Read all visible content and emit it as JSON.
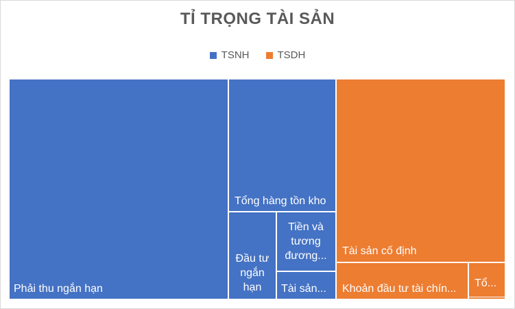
{
  "chart_data": {
    "type": "treemap",
    "title": "TỈ TRỌNG TÀI SẢN",
    "groups": [
      {
        "name": "TSNH",
        "color": "#4472C4"
      },
      {
        "name": "TSDH",
        "color": "#ED7D31"
      }
    ],
    "items": [
      {
        "label": "Phải thu ngắn hạn",
        "group": "TSNH",
        "value": 34.6
      },
      {
        "label": "Tổng hàng tồn kho",
        "group": "TSNH",
        "value": 8.3
      },
      {
        "label": "Đầu tư ngắn hạn",
        "group": "TSNH",
        "value": 4.8
      },
      {
        "label": "Tiền và tương đương...",
        "group": "TSNH",
        "value": 3.4
      },
      {
        "label": "Tài sản...",
        "group": "TSNH",
        "value": 1.3
      },
      {
        "label": "Tài sản cố định",
        "group": "TSDH",
        "value": 13.9
      },
      {
        "label": "Khoản đầu tư tài chín...",
        "group": "TSDH",
        "value": 2.3
      },
      {
        "label": "Tổ...",
        "group": "TSDH",
        "value": 0.2
      },
      {
        "label": "",
        "group": "TSDH",
        "value": 0.1
      }
    ]
  }
}
